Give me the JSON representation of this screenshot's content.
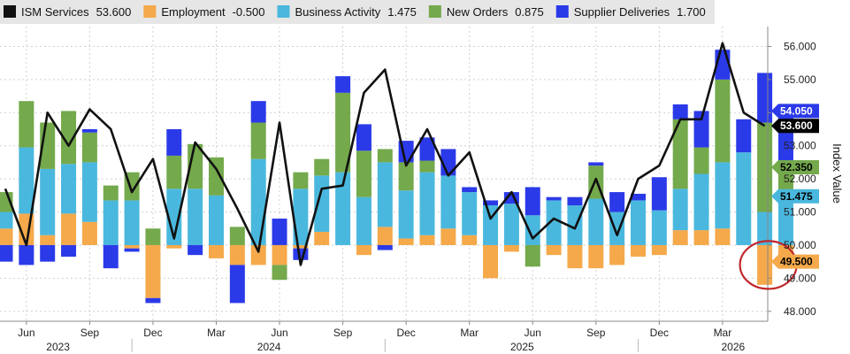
{
  "chart_data": {
    "type": "bar",
    "ylabel": "Index Value",
    "ylim": [
      47.7,
      56.6
    ],
    "yticks": [
      48,
      49,
      50,
      51,
      52,
      53,
      54,
      55,
      56
    ],
    "ytick_labels": [
      "48.000",
      "49.000",
      "50.000",
      "51.000",
      "52.000",
      "53.000",
      "54.000",
      "55.000",
      "56.000"
    ],
    "baseline": 50,
    "grid": true,
    "legend_position": "top",
    "x_month_labels": [
      "Jun",
      "Sep",
      "Dec",
      "Mar",
      "Jun",
      "Sep",
      "Dec",
      "Mar",
      "Jun",
      "Sep",
      "Dec",
      "Mar"
    ],
    "x_year_labels": [
      "2023",
      "2024",
      "2025",
      "2026"
    ],
    "legend": [
      {
        "name": "ISM Services",
        "value": "53.600",
        "color": "#111111"
      },
      {
        "name": "Employment",
        "value": "-0.500",
        "color": "#f5a94a"
      },
      {
        "name": "Business Activity",
        "value": "1.475",
        "color": "#4ab8de"
      },
      {
        "name": "New Orders",
        "value": "0.875",
        "color": "#74a94c"
      },
      {
        "name": "Supplier Deliveries",
        "value": "1.700",
        "color": "#2b3ae8"
      }
    ],
    "series": [
      {
        "name": "Employment",
        "color": "#f5a94a",
        "values": [
          0.5,
          0.95,
          0.3,
          0.95,
          0.7,
          0.0,
          -0.1,
          -1.6,
          -0.1,
          0.0,
          -0.4,
          -0.6,
          -0.6,
          -0.6,
          -0.1,
          0.4,
          0.0,
          -0.3,
          0.55,
          0.2,
          0.3,
          0.5,
          0.3,
          -1.0,
          -0.2,
          0.0,
          -0.3,
          -0.7,
          -0.7,
          -0.6,
          -0.35,
          -0.3,
          0.45,
          0.45,
          0.5,
          0.0,
          -1.2,
          -0.5
        ]
      },
      {
        "name": "Business Activity",
        "color": "#4ab8de",
        "values": [
          0.5,
          2.0,
          2.0,
          1.5,
          1.8,
          1.35,
          1.35,
          0.0,
          1.7,
          1.7,
          1.5,
          0.0,
          2.6,
          0.0,
          1.7,
          1.7,
          2.2,
          1.45,
          1.95,
          1.45,
          1.9,
          1.6,
          1.3,
          1.2,
          1.25,
          0.9,
          1.35,
          1.2,
          1.4,
          1.0,
          1.35,
          1.05,
          1.25,
          1.7,
          2.0,
          2.8,
          1.0,
          1.5
        ]
      },
      {
        "name": "New Orders",
        "color": "#74a94c",
        "values": [
          0.6,
          1.4,
          1.4,
          1.6,
          0.9,
          0.45,
          0.85,
          0.5,
          1.0,
          1.35,
          1.15,
          0.55,
          1.1,
          -0.45,
          0.5,
          0.5,
          2.4,
          1.4,
          0.4,
          0.85,
          0.35,
          0.0,
          0.0,
          0.0,
          0.0,
          -0.65,
          0.0,
          0.0,
          1.0,
          0.0,
          0.0,
          0.0,
          2.1,
          0.8,
          2.5,
          0.0,
          2.7,
          0.9
        ]
      },
      {
        "name": "Supplier Deliveries",
        "color": "#2b3ae8",
        "values": [
          -0.5,
          -0.6,
          -0.5,
          -0.35,
          0.1,
          -0.7,
          -0.1,
          -0.15,
          0.8,
          -0.3,
          0.0,
          -1.15,
          0.65,
          0.8,
          -0.35,
          0.0,
          0.5,
          0.8,
          -0.15,
          0.65,
          0.7,
          0.8,
          0.15,
          0.15,
          0.35,
          0.85,
          0.1,
          0.25,
          0.1,
          0.6,
          0.2,
          1.0,
          0.45,
          1.1,
          0.9,
          1.0,
          1.5,
          1.7
        ]
      },
      {
        "name": "ISM Services",
        "color": "#111111",
        "type": "line",
        "values": [
          51.7,
          50.0,
          54.0,
          53.0,
          54.1,
          53.5,
          51.6,
          52.6,
          50.2,
          53.1,
          52.3,
          51.1,
          49.8,
          53.7,
          49.4,
          51.7,
          51.8,
          54.6,
          55.3,
          52.4,
          53.5,
          52.1,
          52.8,
          50.8,
          51.6,
          50.2,
          50.8,
          50.5,
          52.0,
          50.3,
          52.0,
          52.4,
          53.8,
          53.8,
          56.1,
          54.0,
          53.6
        ]
      }
    ],
    "value_tags": [
      {
        "label": "54.050",
        "value": 54.05,
        "bg": "#2b3ae8",
        "fg": "#ffffff"
      },
      {
        "label": "53.600",
        "value": 53.6,
        "bg": "#000000",
        "fg": "#ffffff"
      },
      {
        "label": "52.350",
        "value": 52.35,
        "bg": "#74a94c",
        "fg": "#000000"
      },
      {
        "label": "51.475",
        "value": 51.475,
        "bg": "#4ab8de",
        "fg": "#000000"
      },
      {
        "label": "49.500",
        "value": 49.5,
        "bg": "#f5a94a",
        "fg": "#000000"
      }
    ],
    "annotation": {
      "type": "circle",
      "color": "#c0272d",
      "target_index": 36
    }
  }
}
